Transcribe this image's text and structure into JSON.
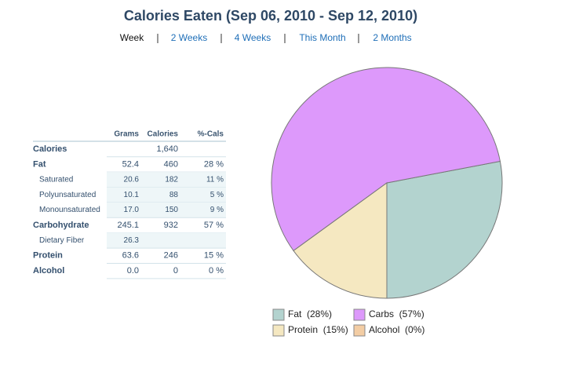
{
  "title": "Calories Eaten (Sep 06, 2010 - Sep 12, 2010)",
  "nav": [
    "Week",
    "2 Weeks",
    "4 Weeks",
    "This Month",
    "2 Months"
  ],
  "table": {
    "header": [
      "Grams",
      "Calories",
      "%-Cals"
    ],
    "rows": [
      {
        "label": "Calories",
        "grams": null,
        "calories": "1,640",
        "pct": null,
        "indent": false
      },
      {
        "label": "Fat",
        "grams": "52.4",
        "calories": "460",
        "pct": "28 %",
        "indent": false
      },
      {
        "label": "Saturated",
        "grams": "20.6",
        "calories": "182",
        "pct": "11 %",
        "indent": true
      },
      {
        "label": "Polyunsaturated",
        "grams": "10.1",
        "calories": "88",
        "pct": "5 %",
        "indent": true
      },
      {
        "label": "Monounsaturated",
        "grams": "17.0",
        "calories": "150",
        "pct": "9 %",
        "indent": true
      },
      {
        "label": "Carbohydrate",
        "grams": "245.1",
        "calories": "932",
        "pct": "57 %",
        "indent": false
      },
      {
        "label": "Dietary Fiber",
        "grams": "26.3",
        "calories": null,
        "pct": null,
        "indent": true
      },
      {
        "label": "Protein",
        "grams": "63.6",
        "calories": "246",
        "pct": "15 %",
        "indent": false
      },
      {
        "label": "Alcohol",
        "grams": "0.0",
        "calories": "0",
        "pct": "0 %",
        "indent": false
      }
    ]
  },
  "chart_data": {
    "type": "pie",
    "categories": [
      "Fat  (28%)",
      "Carbs  (57%)",
      "Protein  (15%)",
      "Alcohol  (0%)"
    ],
    "values": [
      28,
      57,
      15,
      0
    ],
    "colors": [
      "#b3d3cf",
      "#dd99fb",
      "#f5e8c1",
      "#f3cda4"
    ]
  }
}
